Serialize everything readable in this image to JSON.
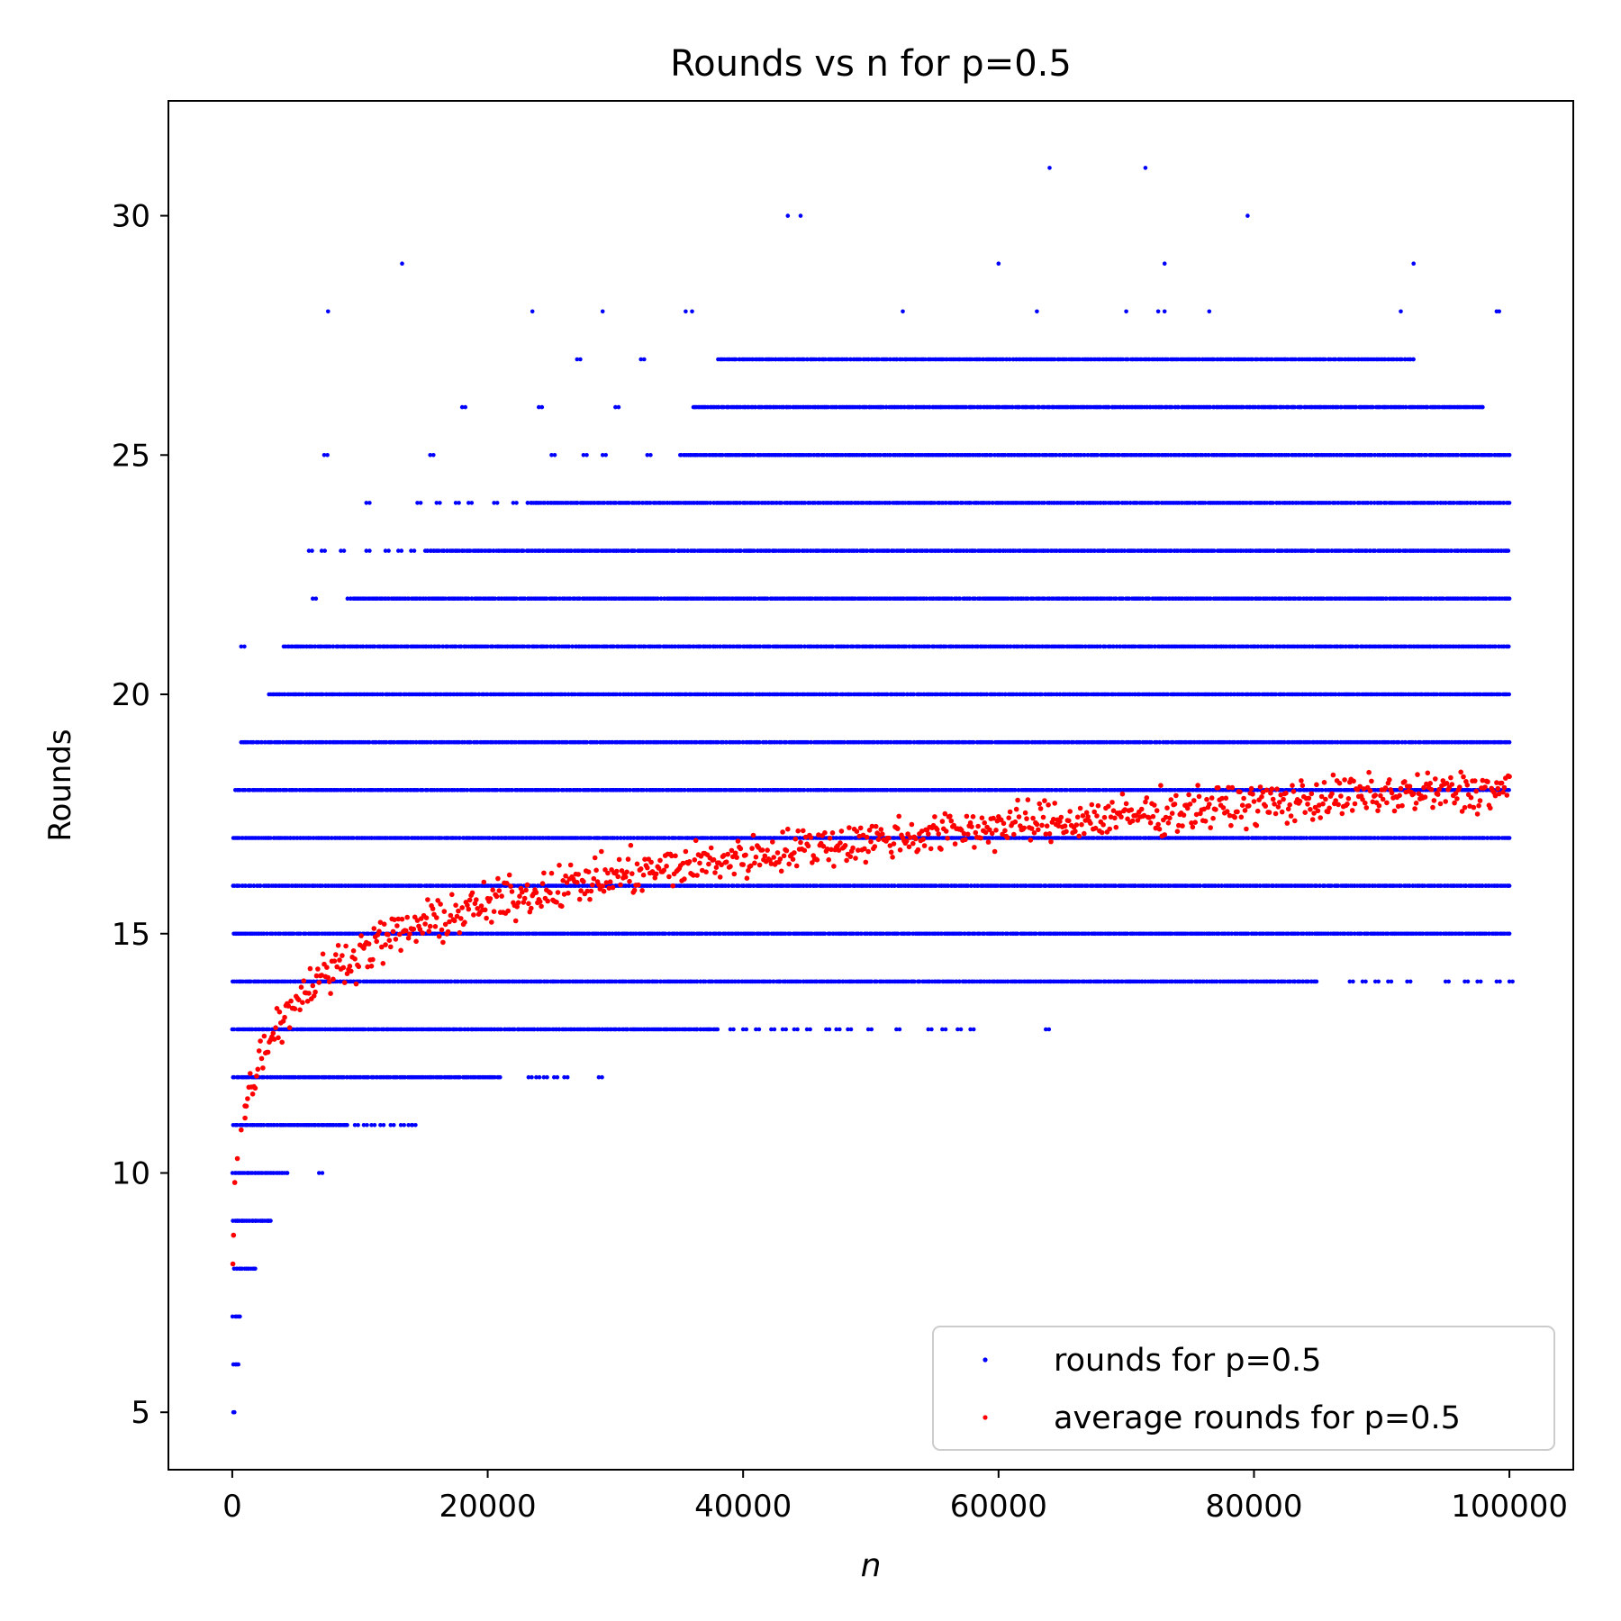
{
  "chart_data": {
    "type": "scatter",
    "title": "Rounds vs n for p=0.5",
    "xlabel": "n",
    "ylabel": "Rounds",
    "xlim": [
      -5000,
      105000
    ],
    "ylim": [
      3.8,
      32.4
    ],
    "xticks": [
      0,
      20000,
      40000,
      60000,
      80000,
      100000
    ],
    "xtick_labels": [
      "0",
      "20000",
      "40000",
      "60000",
      "80000",
      "100000"
    ],
    "yticks": [
      5,
      10,
      15,
      20,
      25,
      30
    ],
    "ytick_labels": [
      "5",
      "10",
      "15",
      "20",
      "25",
      "30"
    ],
    "grid": false,
    "legend_position": "bottom-right",
    "series": [
      {
        "name": "rounds for p=0.5",
        "color": "#0000ff",
        "note": "dense horizontal bands of integer round counts; each band spans the n-range listed",
        "bands": [
          {
            "y": 5,
            "ranges": [
              [
                0,
                200
              ]
            ]
          },
          {
            "y": 6,
            "ranges": [
              [
                0,
                500
              ]
            ]
          },
          {
            "y": 7,
            "ranges": [
              [
                0,
                600
              ]
            ]
          },
          {
            "y": 8,
            "ranges": [
              [
                100,
                1800
              ]
            ]
          },
          {
            "y": 9,
            "ranges": [
              [
                0,
                3000
              ]
            ]
          },
          {
            "y": 10,
            "ranges": [
              [
                0,
                4400
              ]
            ],
            "extra": [
              6800
            ]
          },
          {
            "y": 11,
            "ranges": [
              [
                0,
                9000
              ]
            ],
            "extra": [
              9600,
              10300,
              10900,
              11600,
              12400,
              13200,
              13800,
              14100
            ]
          },
          {
            "y": 12,
            "ranges": [
              [
                0,
                21000
              ]
            ],
            "extra": [
              23200,
              23800,
              24400,
              25200,
              26000,
              28700
            ]
          },
          {
            "y": 13,
            "ranges": [
              [
                0,
                38000
              ]
            ],
            "extra": [
              39000,
              40000,
              41000,
              42200,
              43100,
              44000,
              45000,
              46500,
              47300,
              48200,
              49800,
              52000,
              54500,
              55600,
              56800,
              57800,
              63700
            ]
          },
          {
            "y": 14,
            "ranges": [
              [
                0,
                85000
              ]
            ],
            "extra": [
              87500,
              88500,
              89500,
              90500,
              92000,
              95000,
              96500,
              97500,
              99000,
              100000
            ]
          },
          {
            "y": 15,
            "ranges": [
              [
                0,
                100000
              ]
            ]
          },
          {
            "y": 16,
            "ranges": [
              [
                0,
                100000
              ]
            ]
          },
          {
            "y": 17,
            "ranges": [
              [
                0,
                100000
              ]
            ]
          },
          {
            "y": 18,
            "ranges": [
              [
                200,
                100000
              ]
            ]
          },
          {
            "y": 19,
            "ranges": [
              [
                600,
                100000
              ]
            ]
          },
          {
            "y": 20,
            "ranges": [
              [
                2800,
                100000
              ]
            ]
          },
          {
            "y": 21,
            "ranges": [
              [
                4000,
                100000
              ]
            ],
            "extra": [
              700
            ]
          },
          {
            "y": 22,
            "ranges": [
              [
                9000,
                100000
              ]
            ],
            "extra": [
              6300
            ]
          },
          {
            "y": 23,
            "ranges": [
              [
                15000,
                100000
              ]
            ],
            "extra": [
              6000,
              7000,
              8500,
              10500,
              12000,
              13000,
              14000
            ]
          },
          {
            "y": 24,
            "ranges": [
              [
                23000,
                100000
              ]
            ],
            "extra": [
              10500,
              14500,
              16000,
              17500,
              18500,
              20500,
              22000
            ]
          },
          {
            "y": 25,
            "ranges": [
              [
                35000,
                100000
              ]
            ],
            "extra": [
              7200,
              15500,
              25000,
              27500,
              29000,
              32500
            ]
          },
          {
            "y": 26,
            "ranges": [
              [
                36000,
                98000
              ]
            ],
            "extra": [
              18000,
              24000,
              30000
            ]
          },
          {
            "y": 27,
            "ranges": [
              [
                38000,
                92500
              ]
            ],
            "extra": [
              27000,
              32000
            ]
          }
        ],
        "sparse_points": [
          [
            7500,
            28
          ],
          [
            23500,
            28
          ],
          [
            29000,
            28
          ],
          [
            35500,
            28
          ],
          [
            36000,
            28
          ],
          [
            52500,
            28
          ],
          [
            63000,
            28
          ],
          [
            70000,
            28
          ],
          [
            72500,
            28
          ],
          [
            73000,
            28
          ],
          [
            76500,
            28
          ],
          [
            91500,
            28
          ],
          [
            99000,
            28
          ],
          [
            99200,
            28
          ],
          [
            13300,
            29
          ],
          [
            60000,
            29
          ],
          [
            73000,
            29
          ],
          [
            92500,
            29
          ],
          [
            43500,
            30
          ],
          [
            44500,
            30
          ],
          [
            79500,
            30
          ],
          [
            64000,
            31
          ],
          [
            71500,
            31
          ]
        ]
      },
      {
        "name": "average rounds for p=0.5",
        "color": "#ff0000",
        "note": "noisy trend; approximate mean curve (n, rounds) with scatter of about ±0.4",
        "trend": [
          [
            50,
            8.1
          ],
          [
            100,
            8.7
          ],
          [
            200,
            9.8
          ],
          [
            400,
            10.3
          ],
          [
            700,
            10.9
          ],
          [
            1000,
            11.4
          ],
          [
            1500,
            11.8
          ],
          [
            2000,
            12.3
          ],
          [
            3000,
            12.9
          ],
          [
            4000,
            13.3
          ],
          [
            5000,
            13.6
          ],
          [
            6000,
            13.9
          ],
          [
            7000,
            14.1
          ],
          [
            8000,
            14.3
          ],
          [
            10000,
            14.6
          ],
          [
            12000,
            14.9
          ],
          [
            15000,
            15.2
          ],
          [
            20000,
            15.6
          ],
          [
            25000,
            15.95
          ],
          [
            30000,
            16.2
          ],
          [
            35000,
            16.4
          ],
          [
            40000,
            16.6
          ],
          [
            45000,
            16.8
          ],
          [
            50000,
            16.95
          ],
          [
            55000,
            17.1
          ],
          [
            60000,
            17.25
          ],
          [
            65000,
            17.35
          ],
          [
            70000,
            17.45
          ],
          [
            75000,
            17.6
          ],
          [
            80000,
            17.7
          ],
          [
            85000,
            17.8
          ],
          [
            90000,
            17.9
          ],
          [
            95000,
            17.95
          ],
          [
            100000,
            18.0
          ]
        ]
      }
    ]
  }
}
